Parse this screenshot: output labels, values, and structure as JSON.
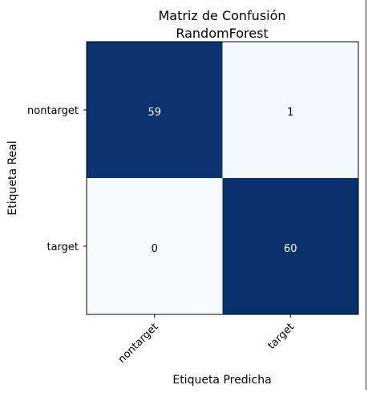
{
  "chart_data": {
    "type": "heatmap",
    "title": "Matriz de Confusión\nRandomForest",
    "title_lines": [
      "Matriz de Confusión",
      "RandomForest"
    ],
    "xlabel": "Etiqueta Predicha",
    "ylabel": "Etiqueta Real",
    "x_categories": [
      "nontarget",
      "target"
    ],
    "y_categories": [
      "nontarget",
      "target"
    ],
    "values": [
      [
        59,
        1
      ],
      [
        0,
        60
      ]
    ],
    "color_range": [
      0,
      60
    ],
    "colormap": "Blues",
    "low_color": "#f7fbff",
    "high_color": "#08306b",
    "text_color_dark_cell": "#ffffff",
    "text_color_light_cell": "#000000",
    "grid": false,
    "x_tick_rotation": -45
  }
}
